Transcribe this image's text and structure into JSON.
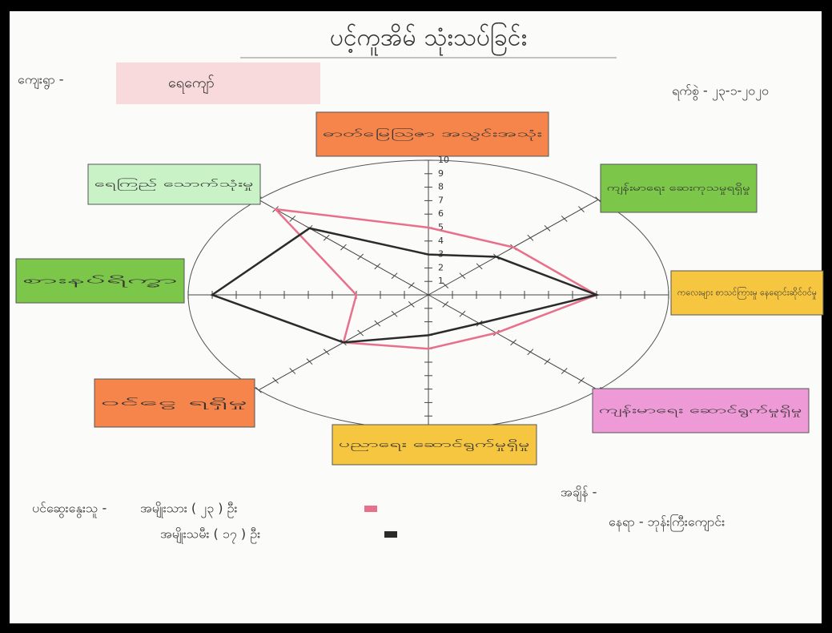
{
  "header": {
    "title": "ပင့်ကူအိမ် သုံးသပ်ခြင်း",
    "village_label": "ကျေးရွာ -",
    "village": "ရေကျော်",
    "date": "ရက်စွဲ - ၂၃-၁-၂၀၂၀"
  },
  "chart_data": {
    "type": "radar",
    "categories": [
      "ဓာတ်မြေဩဇာ အသွင်းအသုံး",
      "ကျန်းမာရေး ဆေးကုသမှုရရှိမှု",
      "ကလေးများ စာသင်ကြားမှု နေရောင်းဆိုင်ဝင်မှု",
      "ကျန်းမာရေး ဆောင်ရွက်မှုရှိမှု",
      "ပညာရေး ဆောင်ရွက်မှုရှိမှု",
      "ဝင်ငွေ ရရှိမှု",
      "စားနပ်ရိက္ခာ",
      "ရေကြည် သောက်သုံးမှု"
    ],
    "category_colors": [
      "#f5854a",
      "#7cc64a",
      "#f6c640",
      "#ee9ad6",
      "#f6c640",
      "#f5854a",
      "#7cc64a",
      "#c9f2c6"
    ],
    "rlim": [
      0,
      10
    ],
    "rticks": [
      1,
      2,
      3,
      4,
      5,
      6,
      7,
      8,
      9,
      10
    ],
    "series": [
      {
        "name": "အမျိုးသား ( ၂၃ ) ဦး",
        "color": "#e8708a",
        "values": [
          5,
          5,
          7,
          4,
          4,
          5,
          3,
          9
        ]
      },
      {
        "name": "အမျိုးသမီး ( ၁၇ ) ဦး",
        "color": "#2b2b2b",
        "values": [
          3,
          4,
          7,
          3,
          3,
          5,
          9,
          7
        ]
      }
    ]
  },
  "footer": {
    "participants_label": "ပင်ဆွေးနွေးသူ -",
    "time_label": "အချိန် -",
    "place": "နေရာ - ဘုန်းကြီးကျောင်း"
  }
}
